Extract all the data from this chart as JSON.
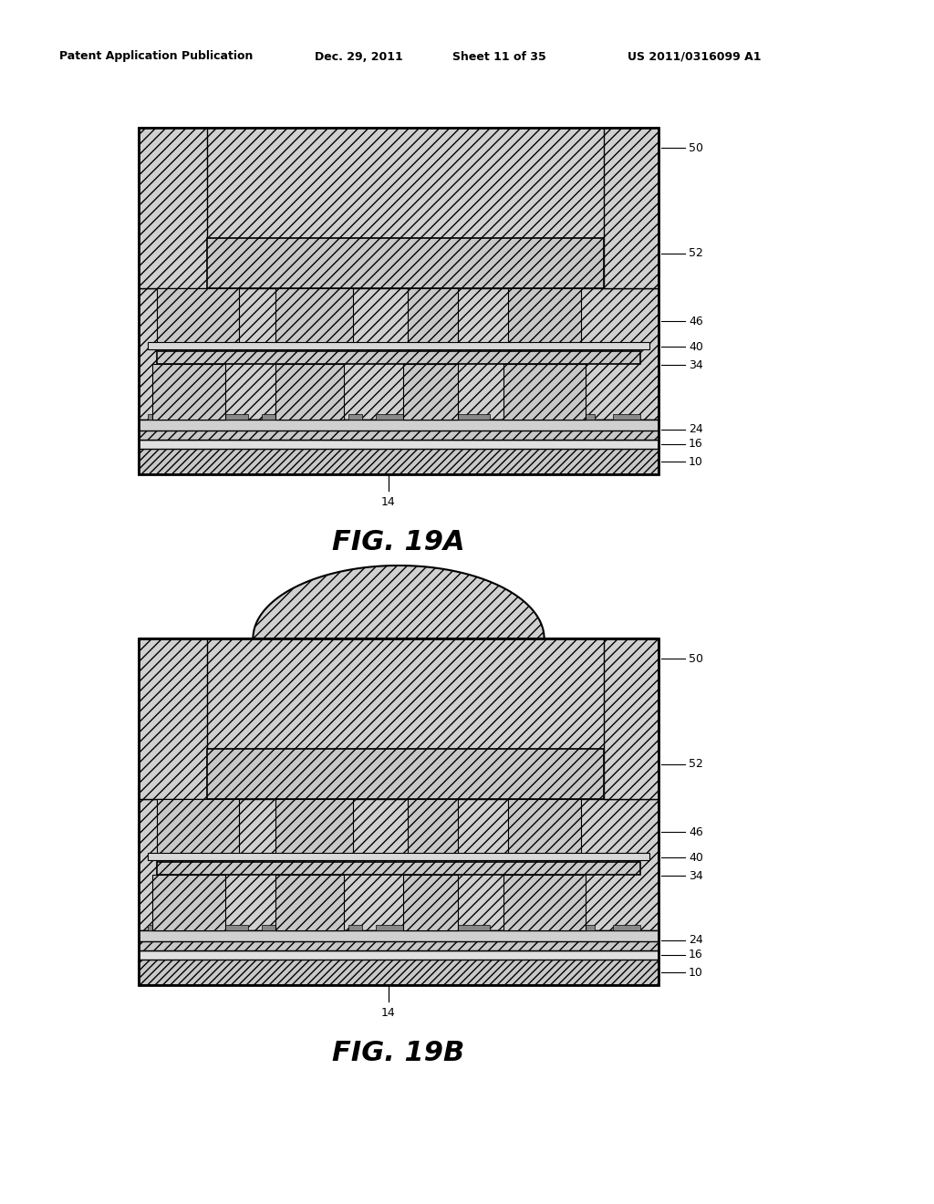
{
  "header_left": "Patent Application Publication",
  "header_date": "Dec. 29, 2011",
  "header_sheet": "Sheet 11 of 35",
  "header_patent": "US 2011/0316099 A1",
  "fig_a_label": "FIG. 19A",
  "fig_b_label": "FIG. 19B",
  "bg": "#ffffff",
  "lc": "#000000",
  "hatch_light": "///",
  "hatch_dense": "////",
  "gray_fill": "#d8d8d8",
  "white_fill": "#ffffff",
  "dark_fill": "#a0a0a0"
}
